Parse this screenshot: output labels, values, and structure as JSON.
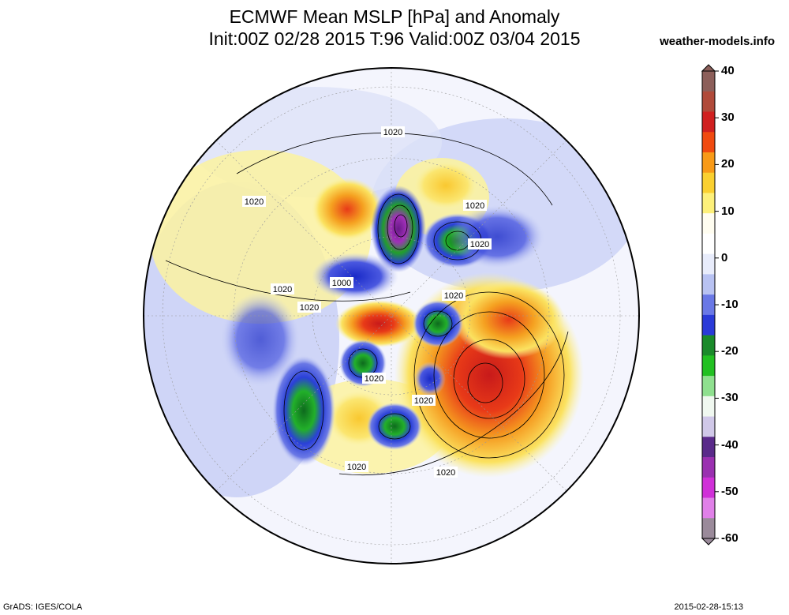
{
  "header": {
    "title_line1": "ECMWF Mean MSLP [hPa] and Anomaly",
    "title_line2": "Init:00Z 02/28 2015 T:96 Valid:00Z 03/04 2015",
    "site": "weather-models.info"
  },
  "colorbar": {
    "ticks": [
      "40",
      "30",
      "20",
      "10",
      "0",
      "-10",
      "-20",
      "-30",
      "-40",
      "-50",
      "-60"
    ],
    "colors": [
      "#8c5f5a",
      "#b04a3a",
      "#d02020",
      "#f04a10",
      "#f89a18",
      "#fad030",
      "#fdf07a",
      "#fffdf0",
      "#ffffff",
      "#e8ecfb",
      "#b8c2f2",
      "#6a78e6",
      "#2a3ad8",
      "#1a8a2a",
      "#22c022",
      "#8fe08f",
      "#f0f8f0",
      "#d0c8e8",
      "#5a2a8a",
      "#9a30b0",
      "#d030d8",
      "#e080e8",
      "#9a8a9a"
    ]
  },
  "map": {
    "contour_labels": [
      "1020",
      "1020",
      "1020",
      "1020",
      "1000",
      "1020",
      "1020",
      "1020",
      "1020",
      "1020",
      "1020",
      "1020"
    ],
    "colors": {
      "ocean_base": "#f4f5fd",
      "weak_negative": "#c5cdf5",
      "strong_negative": "#2d3ad6",
      "very_strong_negative": "#1b9a2b",
      "extreme_negative": "#8a2aa8",
      "weak_positive": "#fbf2a0",
      "positive": "#f9d23a",
      "strong_positive": "#f08a1c",
      "very_strong_positive": "#e52a18"
    }
  },
  "footer": {
    "left": "GrADS: IGES/COLA",
    "right": "2015-02-28-15:13"
  }
}
